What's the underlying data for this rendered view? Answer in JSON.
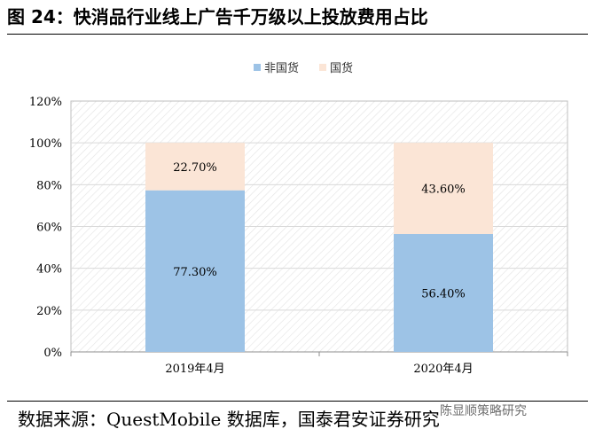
{
  "figure": {
    "title": "图 24：快消品行业线上广告千万级以上投放费用占比",
    "source": "数据来源：QuestMobile 数据库，国泰君安证券研究",
    "watermark": "陈显顺策略研究"
  },
  "colors": {
    "non_domestic": "#9dc3e6",
    "domestic": "#fbe5d6",
    "grid": "#d9d9d9",
    "hatch": "#e3e3e3"
  },
  "chart_data": {
    "type": "bar",
    "stacked": true,
    "categories": [
      "2019年4月",
      "2020年4月"
    ],
    "series": [
      {
        "name": "非国货",
        "values": [
          77.3,
          56.4
        ],
        "labels": [
          "77.30%",
          "56.40%"
        ]
      },
      {
        "name": "国货",
        "values": [
          22.7,
          43.6
        ],
        "labels": [
          "22.70%",
          "43.60%"
        ]
      }
    ],
    "yticks": [
      "0%",
      "20%",
      "40%",
      "60%",
      "80%",
      "100%",
      "120%"
    ],
    "ylim": [
      0,
      120
    ],
    "legend": "top-center",
    "grid": true
  }
}
